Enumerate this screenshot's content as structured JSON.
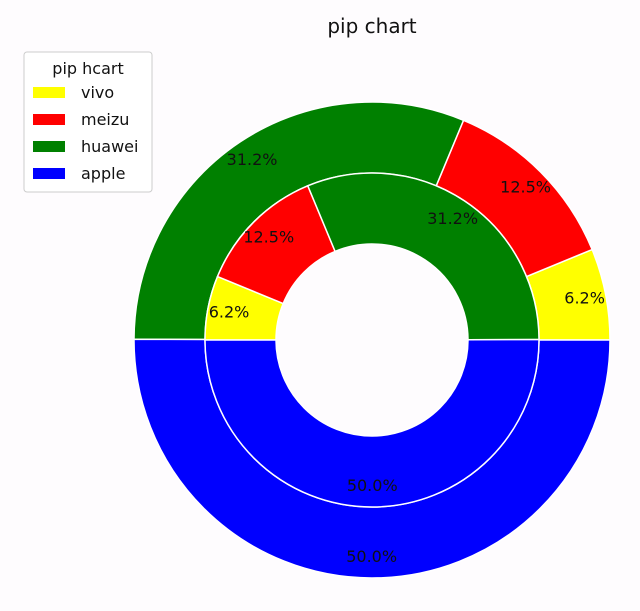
{
  "chart_data": {
    "type": "pie",
    "variant": "nested-donut",
    "title": "pip chart",
    "legend": {
      "title": "pip hcart",
      "placement": "top-left",
      "entries": [
        "vivo",
        "meizu",
        "huawei",
        "apple"
      ]
    },
    "categories": [
      "vivo",
      "meizu",
      "huawei",
      "apple"
    ],
    "colors": {
      "vivo": "#ffff00",
      "meizu": "#ff0000",
      "huawei": "#008000",
      "apple": "#0000ff"
    },
    "series": [
      {
        "ring": "outer",
        "values": [
          6.2,
          12.5,
          31.2,
          50.0
        ],
        "labels": [
          "6.2%",
          "12.5%",
          "31.2%",
          "50.0%"
        ],
        "clockwise": false,
        "start_angle_deg": 0
      },
      {
        "ring": "inner",
        "values": [
          6.2,
          12.5,
          31.2,
          50.0
        ],
        "labels": [
          "6.2%",
          "12.5%",
          "31.2%",
          "50.0%"
        ],
        "clockwise": true,
        "start_angle_deg": 180
      }
    ]
  }
}
